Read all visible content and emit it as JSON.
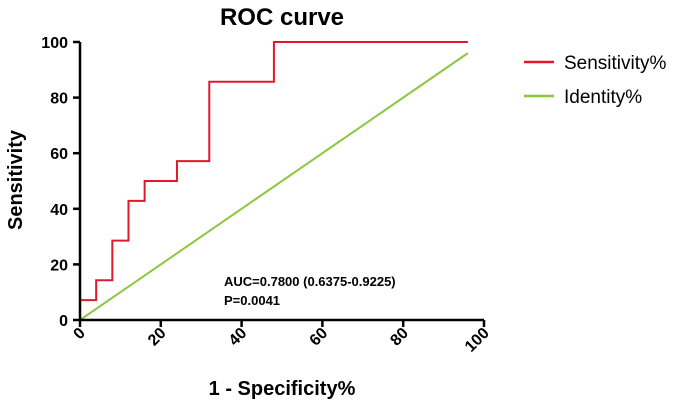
{
  "chart_data": {
    "type": "line",
    "title": "ROC curve",
    "xlabel": "1 - Specificity%",
    "ylabel": "Sensitivity",
    "xlim": [
      0,
      100
    ],
    "ylim": [
      0,
      100
    ],
    "xticks": [
      0,
      20,
      40,
      60,
      80,
      100
    ],
    "yticks": [
      0,
      20,
      40,
      60,
      80,
      100
    ],
    "grid": false,
    "legend_position": "right",
    "series": [
      {
        "name": "Sensitivity%",
        "color": "#e3182d",
        "step": true,
        "x": [
          0,
          4,
          4,
          8,
          8,
          12,
          12,
          16,
          16,
          24,
          24,
          32,
          32,
          48,
          48,
          96
        ],
        "y": [
          7.14,
          7.14,
          14.29,
          14.29,
          28.57,
          28.57,
          42.86,
          42.86,
          50,
          50,
          57.14,
          57.14,
          85.71,
          85.71,
          100,
          100
        ]
      },
      {
        "name": "Identity%",
        "color": "#8dc63f",
        "x": [
          0,
          96
        ],
        "y": [
          0,
          96
        ]
      }
    ],
    "annotations": [
      "AUC=0.7800 (0.6375-0.9225)",
      "P=0.0041"
    ]
  }
}
